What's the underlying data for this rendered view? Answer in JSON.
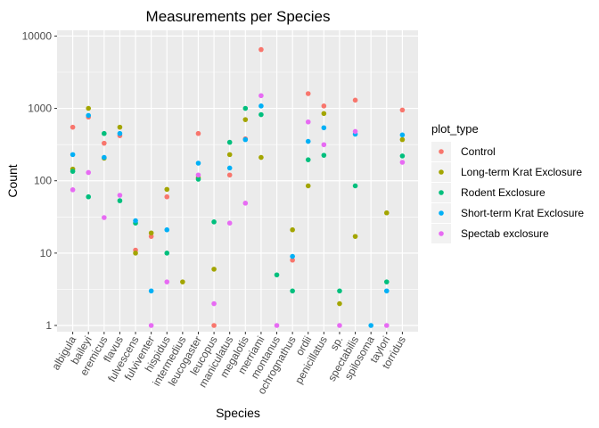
{
  "chart_data": {
    "type": "scatter",
    "title": "Measurements per Species",
    "xlabel": "Species",
    "ylabel": "Count",
    "y_scale": "log10",
    "ylim": [
      0.82,
      12000
    ],
    "y_ticks": [
      1,
      10,
      100,
      1000,
      10000
    ],
    "y_tick_labels": [
      "1",
      "10",
      "100",
      "1000",
      "10000"
    ],
    "grid": true,
    "legend_position": "right",
    "legend_title": "plot_type",
    "categories": [
      "albigula",
      "baileyi",
      "eremicus",
      "flavus",
      "fulvescens",
      "fulviventer",
      "hispidus",
      "intermedius",
      "leucogaster",
      "leucopus",
      "maniculatus",
      "megalotis",
      "merriami",
      "montanus",
      "ochrognathus",
      "ordii",
      "penicillatus",
      "sp.",
      "spectabilis",
      "spilosoma",
      "taylori",
      "torridus"
    ],
    "series": [
      {
        "name": "Control",
        "color": "#F8766D",
        "points": [
          [
            "albigula",
            550
          ],
          [
            "baileyi",
            760
          ],
          [
            "eremicus",
            330
          ],
          [
            "flavus",
            420
          ],
          [
            "fulvescens",
            11
          ],
          [
            "fulviventer",
            17
          ],
          [
            "hispidus",
            60
          ],
          [
            "leucogaster",
            450
          ],
          [
            "leucopus",
            1
          ],
          [
            "maniculatus",
            120
          ],
          [
            "megalotis",
            380
          ],
          [
            "merriami",
            6500
          ],
          [
            "ochrognathus",
            8
          ],
          [
            "ordii",
            1600
          ],
          [
            "penicillatus",
            1080
          ],
          [
            "spectabilis",
            1300
          ],
          [
            "torridus",
            950
          ]
        ]
      },
      {
        "name": "Long-term Krat Exclosure",
        "color": "#A3A500",
        "points": [
          [
            "albigula",
            145
          ],
          [
            "baileyi",
            1000
          ],
          [
            "eremicus",
            205
          ],
          [
            "flavus",
            550
          ],
          [
            "fulvescens",
            10
          ],
          [
            "fulviventer",
            19
          ],
          [
            "hispidus",
            76
          ],
          [
            "intermedius",
            4
          ],
          [
            "leucogaster",
            110
          ],
          [
            "leucopus",
            6
          ],
          [
            "maniculatus",
            230
          ],
          [
            "megalotis",
            700
          ],
          [
            "merriami",
            210
          ],
          [
            "ochrognathus",
            21
          ],
          [
            "ordii",
            85
          ],
          [
            "penicillatus",
            850
          ],
          [
            "sp.",
            2
          ],
          [
            "spectabilis",
            17
          ],
          [
            "taylori",
            36
          ],
          [
            "torridus",
            370
          ]
        ]
      },
      {
        "name": "Rodent Exclosure",
        "color": "#00BF7D",
        "points": [
          [
            "albigula",
            135
          ],
          [
            "baileyi",
            60
          ],
          [
            "eremicus",
            450
          ],
          [
            "flavus",
            53
          ],
          [
            "fulvescens",
            26
          ],
          [
            "hispidus",
            10
          ],
          [
            "leucogaster",
            105
          ],
          [
            "leucopus",
            27
          ],
          [
            "maniculatus",
            340
          ],
          [
            "megalotis",
            1000
          ],
          [
            "merriami",
            820
          ],
          [
            "montanus",
            5
          ],
          [
            "ochrognathus",
            3
          ],
          [
            "ordii",
            195
          ],
          [
            "penicillatus",
            225
          ],
          [
            "sp.",
            3
          ],
          [
            "spectabilis",
            85
          ],
          [
            "taylori",
            4
          ],
          [
            "torridus",
            220
          ]
        ]
      },
      {
        "name": "Short-term Krat Exclosure",
        "color": "#00B0F6",
        "points": [
          [
            "albigula",
            230
          ],
          [
            "baileyi",
            800
          ],
          [
            "eremicus",
            210
          ],
          [
            "flavus",
            450
          ],
          [
            "fulvescens",
            28
          ],
          [
            "fulviventer",
            3
          ],
          [
            "hispidus",
            21
          ],
          [
            "leucogaster",
            175
          ],
          [
            "maniculatus",
            150
          ],
          [
            "megalotis",
            370
          ],
          [
            "merriami",
            1080
          ],
          [
            "ochrognathus",
            9
          ],
          [
            "ordii",
            350
          ],
          [
            "penicillatus",
            540
          ],
          [
            "spectabilis",
            440
          ],
          [
            "spilosoma",
            1
          ],
          [
            "taylori",
            3
          ],
          [
            "torridus",
            430
          ]
        ]
      },
      {
        "name": "Spectab exclosure",
        "color": "#E76BF3",
        "points": [
          [
            "albigula",
            75
          ],
          [
            "baileyi",
            130
          ],
          [
            "eremicus",
            31
          ],
          [
            "flavus",
            63
          ],
          [
            "fulviventer",
            1
          ],
          [
            "hispidus",
            4
          ],
          [
            "leucogaster",
            120
          ],
          [
            "leucopus",
            2
          ],
          [
            "maniculatus",
            26
          ],
          [
            "megalotis",
            49
          ],
          [
            "merriami",
            1500
          ],
          [
            "montanus",
            1
          ],
          [
            "ordii",
            650
          ],
          [
            "penicillatus",
            315
          ],
          [
            "sp.",
            1
          ],
          [
            "spectabilis",
            480
          ],
          [
            "taylori",
            1
          ],
          [
            "torridus",
            180
          ]
        ]
      }
    ]
  }
}
